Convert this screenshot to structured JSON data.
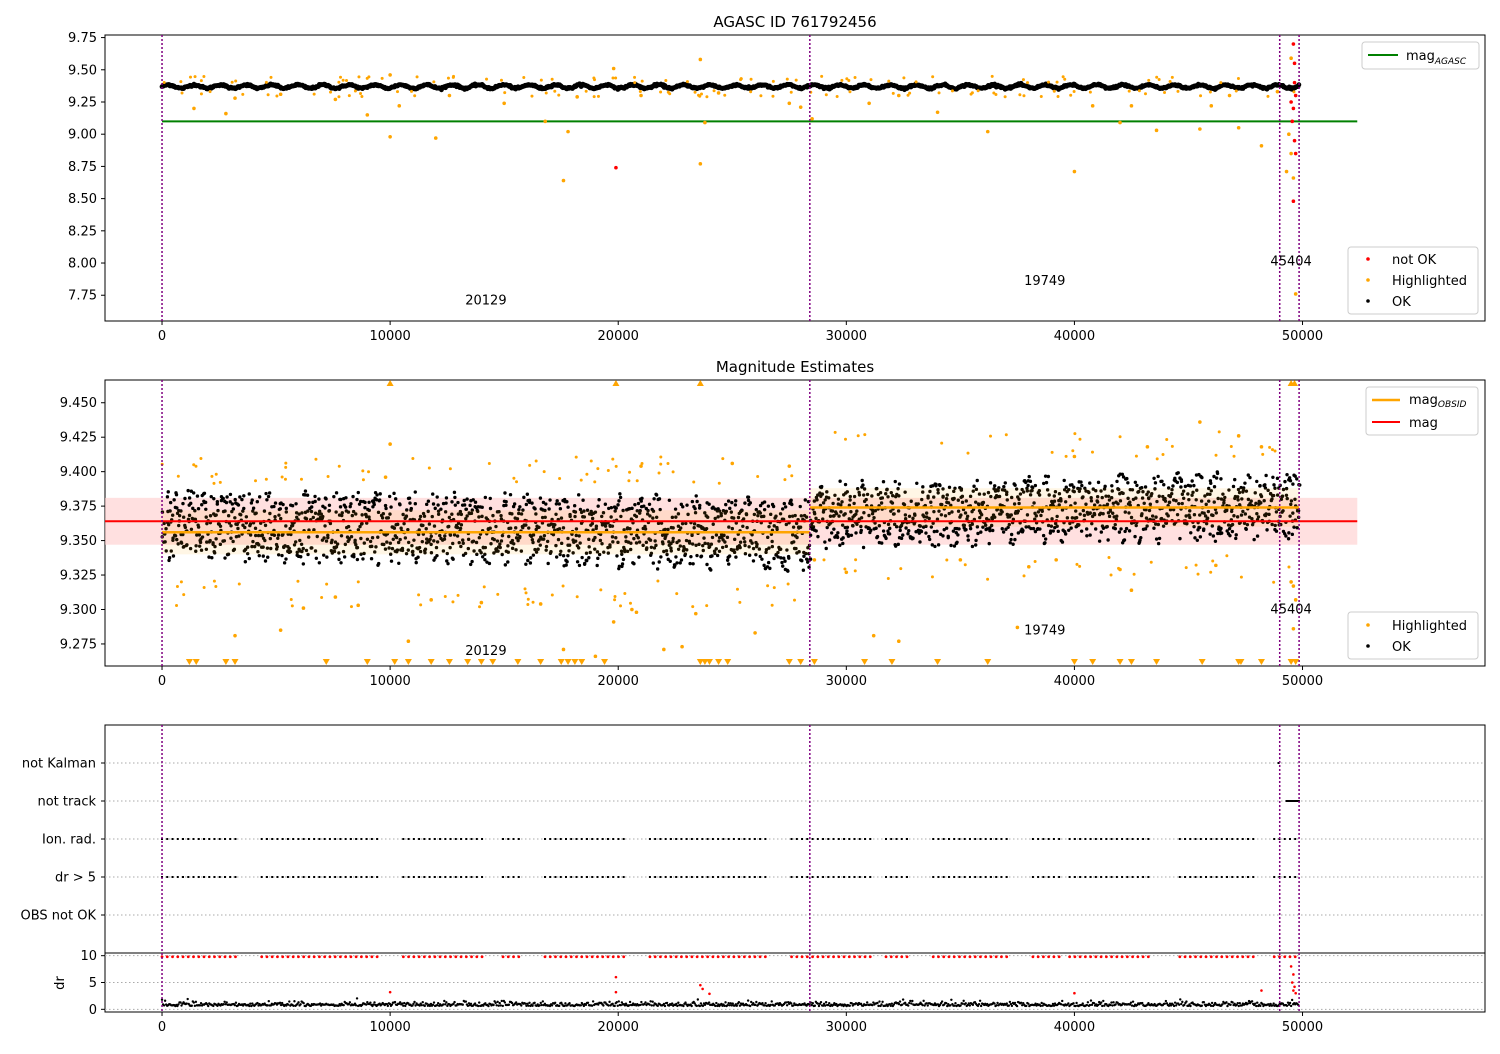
{
  "chart_data": [
    {
      "type": "scatter",
      "title": "AGASC ID 761792456",
      "xlim": [
        -2500,
        58000
      ],
      "ylim": [
        7.55,
        9.77
      ],
      "x_ticks": [
        0,
        10000,
        20000,
        30000,
        40000,
        50000
      ],
      "x_tick_labels": [
        "0",
        "10000",
        "20000",
        "30000",
        "40000",
        "50000"
      ],
      "y_ticks": [
        7.75,
        8.0,
        8.25,
        8.5,
        8.75,
        9.0,
        9.25,
        9.5,
        9.75
      ],
      "y_tick_labels": [
        "7.75",
        "8.00",
        "8.25",
        "8.50",
        "8.75",
        "9.00",
        "9.25",
        "9.50",
        "9.75"
      ],
      "obsid_boundaries": [
        0,
        28400,
        49000,
        49850
      ],
      "obsid_labels": [
        {
          "text": "20129",
          "x": 14200,
          "y": 7.68
        },
        {
          "text": "19749",
          "x": 38700,
          "y": 7.83
        },
        {
          "text": "45404",
          "x": 49500,
          "y": 7.98
        }
      ],
      "mag_agasc": {
        "value": 9.1,
        "x_range": [
          0,
          52400
        ],
        "color": "#008000"
      },
      "series": [
        {
          "name": "OK",
          "color": "#000000",
          "y_center": 9.37,
          "y_spread": 0.03
        },
        {
          "name": "Highlighted",
          "color": "#ffa500"
        },
        {
          "name": "not OK",
          "color": "#ff0000"
        }
      ],
      "legend_lines": [
        {
          "label": "mag",
          "sub": "AGASC",
          "color": "#008000"
        }
      ],
      "legend_points": [
        {
          "label": "not OK",
          "color": "#ff0000"
        },
        {
          "label": "Highlighted",
          "color": "#ffa500"
        },
        {
          "label": "OK",
          "color": "#000000"
        }
      ],
      "highlight_points": [
        [
          1400,
          9.2
        ],
        [
          2800,
          9.16
        ],
        [
          3200,
          9.28
        ],
        [
          5200,
          9.31
        ],
        [
          7600,
          9.27
        ],
        [
          9000,
          9.15
        ],
        [
          10000,
          9.46
        ],
        [
          10000,
          8.98
        ],
        [
          10400,
          9.22
        ],
        [
          12000,
          8.97
        ],
        [
          12600,
          9.3
        ],
        [
          15000,
          9.24
        ],
        [
          16800,
          9.1
        ],
        [
          17600,
          8.64
        ],
        [
          17800,
          9.02
        ],
        [
          18200,
          9.29
        ],
        [
          19800,
          9.51
        ],
        [
          21000,
          9.3
        ],
        [
          23600,
          9.58
        ],
        [
          23600,
          8.77
        ],
        [
          23800,
          9.09
        ],
        [
          24400,
          9.32
        ],
        [
          27500,
          9.24
        ],
        [
          28000,
          9.21
        ],
        [
          28500,
          9.12
        ],
        [
          31000,
          9.24
        ],
        [
          32300,
          9.3
        ],
        [
          34000,
          9.17
        ],
        [
          36200,
          9.02
        ],
        [
          40000,
          8.71
        ],
        [
          40800,
          9.22
        ],
        [
          42000,
          9.09
        ],
        [
          42500,
          9.22
        ],
        [
          43600,
          9.03
        ],
        [
          45500,
          9.04
        ],
        [
          46000,
          9.22
        ],
        [
          46800,
          9.3
        ],
        [
          47200,
          9.05
        ],
        [
          48200,
          8.91
        ],
        [
          48900,
          9.33
        ],
        [
          49300,
          8.71
        ],
        [
          49500,
          9.59
        ],
        [
          49600,
          8.66
        ],
        [
          49700,
          7.76
        ],
        [
          49400,
          9.0
        ],
        [
          49500,
          8.85
        ]
      ],
      "notok_points": [
        [
          19900,
          8.74
        ],
        [
          49600,
          9.7
        ],
        [
          49650,
          9.55
        ],
        [
          49700,
          9.3
        ],
        [
          49600,
          9.2
        ],
        [
          49550,
          9.1
        ],
        [
          49650,
          8.95
        ],
        [
          49700,
          8.85
        ],
        [
          49600,
          8.48
        ],
        [
          49500,
          9.25
        ],
        [
          49650,
          9.4
        ]
      ]
    },
    {
      "type": "scatter",
      "title": "Magnitude Estimates",
      "xlim": [
        -2500,
        58000
      ],
      "ylim": [
        9.259,
        9.4665
      ],
      "x_ticks": [
        0,
        10000,
        20000,
        30000,
        40000,
        50000
      ],
      "x_tick_labels": [
        "0",
        "10000",
        "20000",
        "30000",
        "40000",
        "50000"
      ],
      "y_ticks": [
        9.275,
        9.3,
        9.325,
        9.35,
        9.375,
        9.4,
        9.425,
        9.45
      ],
      "y_tick_labels": [
        "9.275",
        "9.300",
        "9.325",
        "9.350",
        "9.375",
        "9.400",
        "9.425",
        "9.450"
      ],
      "obsid_boundaries": [
        0,
        28400,
        49000,
        49850
      ],
      "obsid_labels": [
        {
          "text": "20129",
          "x": 14200,
          "y": 9.267
        },
        {
          "text": "19749",
          "x": 38700,
          "y": 9.282
        },
        {
          "text": "45404",
          "x": 49500,
          "y": 9.297
        }
      ],
      "mag": {
        "value": 9.364,
        "band": [
          9.347,
          9.381
        ],
        "x_range": [
          -2500,
          52400
        ],
        "color": "#ff0000"
      },
      "mag_obsid": [
        {
          "x_range": [
            0,
            28400
          ],
          "value": 9.356,
          "band": [
            9.34,
            9.372
          ]
        },
        {
          "x_range": [
            28400,
            49850
          ],
          "value": 9.374,
          "band": [
            9.36,
            9.388
          ]
        }
      ],
      "series": [
        {
          "name": "OK",
          "color": "#000000",
          "segments": [
            {
              "x_range": [
                0,
                28400
              ],
              "center_start": 9.362,
              "center_end": 9.355,
              "spread": 0.028
            },
            {
              "x_range": [
                28400,
                49850
              ],
              "center_start": 9.368,
              "center_end": 9.376,
              "spread": 0.026
            }
          ]
        },
        {
          "name": "Highlighted",
          "color": "#ffa500"
        }
      ],
      "legend_lines": [
        {
          "label": "mag",
          "sub": "OBSID",
          "color": "#ffa500"
        },
        {
          "label": "mag",
          "sub": "",
          "color": "#ff0000"
        }
      ],
      "legend_points": [
        {
          "label": "Highlighted",
          "color": "#ffa500"
        },
        {
          "label": "OK",
          "color": "#000000"
        }
      ],
      "highlight_points": [
        [
          3200,
          9.281
        ],
        [
          5200,
          9.285
        ],
        [
          6200,
          9.301
        ],
        [
          7600,
          9.309
        ],
        [
          8600,
          9.303
        ],
        [
          10000,
          9.42
        ],
        [
          9800,
          9.396
        ],
        [
          10800,
          9.277
        ],
        [
          11800,
          9.307
        ],
        [
          14000,
          9.305
        ],
        [
          16600,
          9.304
        ],
        [
          17600,
          9.271
        ],
        [
          19000,
          9.266
        ],
        [
          19800,
          9.291
        ],
        [
          20600,
          9.3
        ],
        [
          20800,
          9.298
        ],
        [
          21000,
          9.404
        ],
        [
          22000,
          9.271
        ],
        [
          22800,
          9.273
        ],
        [
          23400,
          9.297
        ],
        [
          25000,
          9.406
        ],
        [
          26000,
          9.283
        ],
        [
          27500,
          9.404
        ],
        [
          28600,
          9.336
        ],
        [
          30000,
          9.327
        ],
        [
          31200,
          9.281
        ],
        [
          32300,
          9.277
        ],
        [
          35000,
          9.336
        ],
        [
          37500,
          9.287
        ],
        [
          38000,
          9.331
        ],
        [
          39200,
          9.336
        ],
        [
          40000,
          9.411
        ],
        [
          42000,
          9.329
        ],
        [
          42500,
          9.314
        ],
        [
          43200,
          9.418
        ],
        [
          45500,
          9.436
        ],
        [
          46200,
          9.332
        ],
        [
          47200,
          9.426
        ],
        [
          48200,
          9.418
        ],
        [
          49600,
          9.317
        ],
        [
          49600,
          9.286
        ],
        [
          49700,
          9.307
        ],
        [
          49500,
          9.32
        ]
      ],
      "highlight_top_markers": [
        10000,
        19900,
        23600,
        49500,
        49650
      ],
      "highlight_bottom_markers": [
        1200,
        1500,
        2800,
        3200,
        7200,
        9000,
        10200,
        10800,
        11800,
        12600,
        13400,
        14000,
        14500,
        15600,
        16600,
        17500,
        17800,
        18100,
        18400,
        19400,
        23600,
        23800,
        24000,
        24400,
        24800,
        27500,
        28000,
        28600,
        30800,
        32000,
        34000,
        36200,
        40000,
        40800,
        42000,
        42500,
        43600,
        45600,
        47200,
        47300,
        48200,
        49500,
        49700
      ]
    },
    {
      "type": "scatter",
      "xlim": [
        -2500,
        58000
      ],
      "x_ticks": [
        0,
        10000,
        20000,
        30000,
        40000,
        50000
      ],
      "x_tick_labels": [
        "0",
        "10000",
        "20000",
        "30000",
        "40000",
        "50000"
      ],
      "obsid_boundaries": [
        0,
        28400,
        49000,
        49850
      ],
      "flag_categories": [
        "not Kalman",
        "not track",
        "Ion. rad.",
        "dr > 5",
        "OBS not OK"
      ],
      "flag_rows": [
        {
          "category": "not Kalman",
          "x_ranges": [
            [
              48950,
              49000
            ]
          ]
        },
        {
          "category": "not track",
          "x_ranges": [
            [
              49300,
              49850
            ]
          ]
        },
        {
          "category": "Ion. rad.",
          "x_ranges": [
            [
              0,
              49850
            ]
          ]
        },
        {
          "category": "dr > 5",
          "x_ranges": [
            [
              0,
              49850
            ]
          ]
        },
        {
          "category": "OBS not OK",
          "x_ranges": []
        }
      ],
      "dr": {
        "ylabel": "dr",
        "ylim": [
          -0.5,
          10.5
        ],
        "y_ticks": [
          0,
          5,
          10
        ],
        "y_tick_labels": [
          "0",
          "5",
          "10"
        ],
        "ok": {
          "color": "#000000",
          "center": 0.6,
          "spread": 0.5
        },
        "not_ok_cap": 9.8,
        "not_ok_color": "#ff0000",
        "not_ok_points": [
          [
            10000,
            3.2
          ],
          [
            19900,
            6
          ],
          [
            19900,
            3.2
          ],
          [
            23600,
            4.5
          ],
          [
            23700,
            3.8
          ],
          [
            24000,
            2.9
          ],
          [
            40000,
            3.0
          ],
          [
            48200,
            3.5
          ],
          [
            49500,
            8
          ],
          [
            49600,
            6.5
          ],
          [
            49550,
            5
          ],
          [
            49650,
            4.2
          ],
          [
            49600,
            3.5
          ],
          [
            49700,
            3
          ]
        ]
      }
    }
  ]
}
